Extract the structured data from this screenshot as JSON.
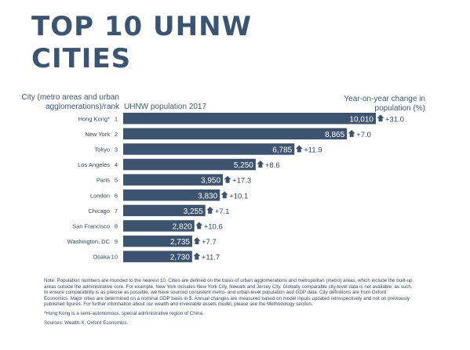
{
  "title_line1": "TOP 10 UHNW",
  "title_line2": "CITIES",
  "headers": {
    "left_line1": "City (metro areas and urban",
    "left_line2": "agglomerations)/rank",
    "middle": "UHNW population 2017",
    "right_line1": "Year-on-year change in",
    "right_line2": "population (%)"
  },
  "colors": {
    "bar": "#3d5470",
    "text": "#2f4560",
    "bar_label": "#ffffff"
  },
  "chart_data": {
    "type": "bar",
    "orientation": "horizontal",
    "xlim": [
      0,
      10010
    ],
    "series": [
      {
        "name": "UHNW population 2017",
        "values": [
          10010,
          8865,
          6785,
          5250,
          3950,
          3830,
          3255,
          2820,
          2735,
          2730
        ],
        "labels": [
          "10,010",
          "8,865",
          "6,785",
          "5,250",
          "3,950",
          "3,830",
          "3,255",
          "2,820",
          "2,735",
          "2,730"
        ]
      },
      {
        "name": "Year-on-year change in population (%)",
        "values": [
          31.0,
          7.0,
          11.9,
          8.6,
          17.3,
          10.1,
          7.1,
          10.6,
          7.7,
          11.7
        ],
        "labels": [
          "+31.0",
          "+7.0",
          "+11.9",
          "+8.6",
          "+17.3",
          "+10.1",
          "+7.1",
          "+10.6",
          "+7.7",
          "+11.7"
        ]
      }
    ],
    "categories": [
      "Hong Kong*",
      "New York",
      "Tokyo",
      "Los Angeles",
      "Paris",
      "London",
      "Chicago",
      "San Francisco",
      "Washington, DC",
      "Osaka"
    ],
    "ranks": [
      "1",
      "2",
      "3",
      "4",
      "5",
      "6",
      "7",
      "8",
      "9",
      "10"
    ]
  },
  "notes": {
    "main": "Note: Population numbers are rounded to the nearest 10. Cities are defined on the basis of urban agglomerations and metropolitan (metro) areas, which include the built-up areas outside the administrative core. For example, New York includes New York City, Newark and Jersey City. Globally comparable city-level data is not available; as such, to ensure comparability is as precise as possible, we have sourced consistent metro- and urban-level population and GDP data. City definitions are from Oxford Economics. Major cities are determined on a nominal GDP basis in $. Annual changes are measured based on model inputs updated retrospectively and not on previously published figures. For further information about our wealth and investable assets model, please see the Methodology section.",
    "footnote": "*Hong Kong is a semi-autonomous, special administrative region of China.",
    "sources": "Sources: Wealth-X, Oxford Economics."
  }
}
